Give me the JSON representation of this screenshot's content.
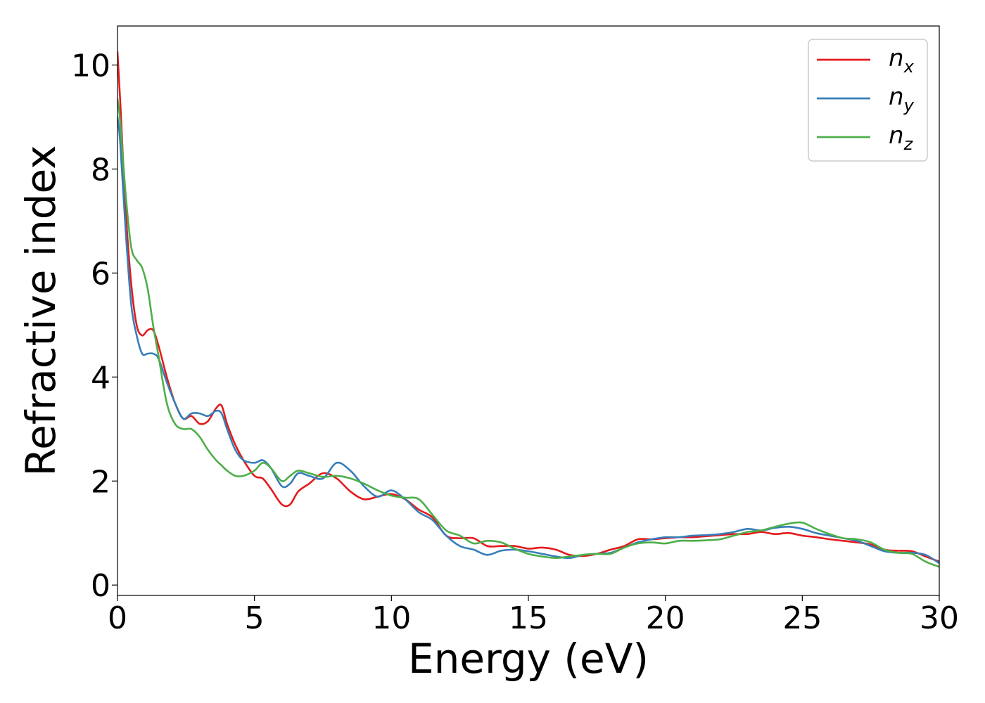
{
  "chart_data": {
    "type": "line",
    "xlabel": "Energy (eV)",
    "ylabel": "Refractive index",
    "xlim": [
      0,
      30
    ],
    "ylim": [
      -0.2,
      10.75
    ],
    "xticks": [
      0,
      5,
      10,
      15,
      20,
      25,
      30
    ],
    "yticks": [
      0,
      2,
      4,
      6,
      8,
      10
    ],
    "grid": false,
    "legend_position": "top-right",
    "series": [
      {
        "name": "n_x",
        "label_base": "n",
        "label_sub": "x",
        "color": "#e41a1c",
        "x": [
          0,
          0.1,
          0.3,
          0.5,
          0.7,
          0.9,
          1.1,
          1.3,
          1.5,
          1.8,
          2.1,
          2.4,
          2.7,
          3.0,
          3.3,
          3.6,
          3.8,
          4.0,
          4.3,
          4.6,
          5.0,
          5.3,
          5.6,
          6.0,
          6.3,
          6.6,
          7.0,
          7.5,
          8.0,
          8.5,
          9.0,
          9.5,
          10.0,
          10.5,
          11.0,
          11.5,
          12.0,
          12.5,
          13.0,
          13.5,
          14.0,
          14.5,
          15.0,
          15.5,
          16.0,
          16.5,
          17.0,
          17.5,
          18.0,
          18.5,
          19.0,
          19.5,
          20.0,
          20.5,
          21.0,
          21.5,
          22.0,
          22.5,
          23.0,
          23.5,
          24.0,
          24.5,
          25.0,
          25.5,
          26.0,
          26.5,
          27.0,
          27.5,
          28.0,
          28.5,
          29.0,
          29.5,
          30.0
        ],
        "y": [
          10.25,
          9.3,
          7.2,
          5.8,
          5.0,
          4.8,
          4.9,
          4.9,
          4.6,
          4.0,
          3.5,
          3.2,
          3.25,
          3.1,
          3.15,
          3.4,
          3.45,
          3.1,
          2.7,
          2.4,
          2.1,
          2.05,
          1.85,
          1.55,
          1.55,
          1.8,
          1.95,
          2.15,
          2.05,
          1.8,
          1.65,
          1.7,
          1.75,
          1.65,
          1.45,
          1.3,
          0.95,
          0.9,
          0.9,
          0.75,
          0.75,
          0.75,
          0.7,
          0.72,
          0.68,
          0.58,
          0.56,
          0.6,
          0.68,
          0.75,
          0.88,
          0.88,
          0.9,
          0.92,
          0.92,
          0.94,
          0.96,
          0.98,
          0.98,
          1.02,
          0.98,
          1.0,
          0.95,
          0.92,
          0.88,
          0.85,
          0.82,
          0.78,
          0.68,
          0.66,
          0.65,
          0.55,
          0.45
        ]
      },
      {
        "name": "n_y",
        "label_base": "n",
        "label_sub": "y",
        "color": "#377eb8",
        "x": [
          0,
          0.1,
          0.3,
          0.5,
          0.7,
          0.9,
          1.1,
          1.3,
          1.5,
          1.8,
          2.1,
          2.4,
          2.7,
          3.0,
          3.3,
          3.6,
          3.8,
          4.0,
          4.3,
          4.6,
          5.0,
          5.3,
          5.6,
          6.0,
          6.3,
          6.6,
          7.0,
          7.5,
          8.0,
          8.5,
          9.0,
          9.5,
          10.0,
          10.5,
          11.0,
          11.5,
          12.0,
          12.5,
          13.0,
          13.5,
          14.0,
          14.5,
          15.0,
          15.5,
          16.0,
          16.5,
          17.0,
          17.5,
          18.0,
          18.5,
          19.0,
          19.5,
          20.0,
          20.5,
          21.0,
          21.5,
          22.0,
          22.5,
          23.0,
          23.5,
          24.0,
          24.5,
          25.0,
          25.5,
          26.0,
          26.5,
          27.0,
          27.5,
          28.0,
          28.5,
          29.0,
          29.5,
          30.0
        ],
        "y": [
          9.0,
          8.5,
          6.8,
          5.4,
          4.8,
          4.45,
          4.45,
          4.45,
          4.35,
          3.9,
          3.5,
          3.2,
          3.3,
          3.3,
          3.25,
          3.35,
          3.3,
          3.0,
          2.6,
          2.4,
          2.35,
          2.4,
          2.25,
          1.9,
          1.95,
          2.15,
          2.1,
          2.05,
          2.35,
          2.2,
          1.9,
          1.7,
          1.82,
          1.65,
          1.4,
          1.25,
          0.95,
          0.75,
          0.68,
          0.58,
          0.66,
          0.68,
          0.65,
          0.6,
          0.55,
          0.52,
          0.58,
          0.6,
          0.62,
          0.72,
          0.82,
          0.88,
          0.92,
          0.92,
          0.95,
          0.96,
          0.98,
          1.02,
          1.08,
          1.05,
          1.1,
          1.12,
          1.08,
          1.0,
          0.95,
          0.9,
          0.85,
          0.75,
          0.65,
          0.62,
          0.62,
          0.58,
          0.42
        ]
      },
      {
        "name": "n_z",
        "label_base": "n",
        "label_sub": "z",
        "color": "#4daf4a",
        "x": [
          0,
          0.1,
          0.3,
          0.5,
          0.7,
          0.9,
          1.1,
          1.3,
          1.5,
          1.8,
          2.1,
          2.4,
          2.7,
          3.0,
          3.3,
          3.6,
          3.8,
          4.0,
          4.3,
          4.6,
          5.0,
          5.3,
          5.6,
          6.0,
          6.3,
          6.6,
          7.0,
          7.5,
          8.0,
          8.5,
          9.0,
          9.5,
          10.0,
          10.5,
          11.0,
          11.5,
          12.0,
          12.5,
          13.0,
          13.5,
          14.0,
          14.5,
          15.0,
          15.5,
          16.0,
          16.5,
          17.0,
          17.5,
          18.0,
          18.5,
          19.0,
          19.5,
          20.0,
          20.5,
          21.0,
          21.5,
          22.0,
          22.5,
          23.0,
          23.5,
          24.0,
          24.5,
          25.0,
          25.5,
          26.0,
          26.5,
          27.0,
          27.5,
          28.0,
          28.5,
          29.0,
          29.5,
          30.0
        ],
        "y": [
          9.35,
          8.9,
          7.5,
          6.5,
          6.25,
          6.1,
          5.7,
          5.0,
          4.4,
          3.5,
          3.1,
          3.0,
          3.0,
          2.85,
          2.6,
          2.4,
          2.3,
          2.2,
          2.1,
          2.1,
          2.2,
          2.35,
          2.25,
          2.0,
          2.1,
          2.2,
          2.15,
          2.08,
          2.1,
          2.05,
          1.95,
          1.82,
          1.72,
          1.68,
          1.65,
          1.35,
          1.05,
          0.95,
          0.8,
          0.85,
          0.82,
          0.7,
          0.6,
          0.55,
          0.52,
          0.55,
          0.58,
          0.6,
          0.6,
          0.72,
          0.8,
          0.82,
          0.8,
          0.85,
          0.85,
          0.86,
          0.88,
          0.95,
          1.02,
          1.05,
          1.12,
          1.18,
          1.2,
          1.08,
          0.98,
          0.9,
          0.88,
          0.82,
          0.68,
          0.62,
          0.6,
          0.45,
          0.35
        ]
      }
    ]
  }
}
